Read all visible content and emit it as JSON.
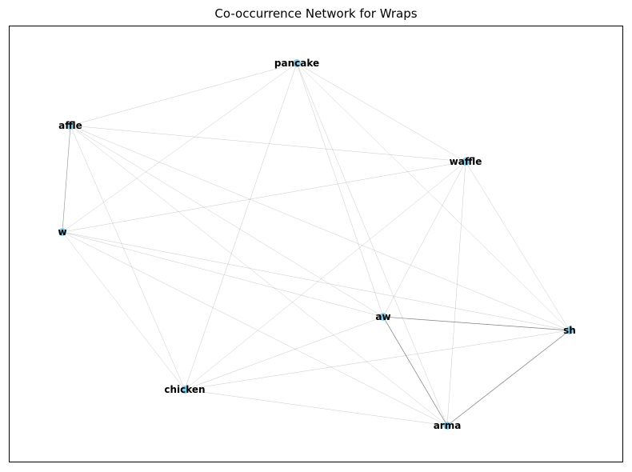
{
  "title": "Co-occurrence Network for Wraps",
  "colors": {
    "node": "#87ceeb",
    "edge": "#808080",
    "label": "#000000",
    "frame": "#000000"
  },
  "nodes": [
    {
      "id": "pancake",
      "label": "pancake"
    },
    {
      "id": "affle",
      "label": "affle"
    },
    {
      "id": "waffle",
      "label": "waffle"
    },
    {
      "id": "w",
      "label": "w"
    },
    {
      "id": "aw",
      "label": "aw"
    },
    {
      "id": "sh",
      "label": "sh"
    },
    {
      "id": "chicken",
      "label": "chicken"
    },
    {
      "id": "arma",
      "label": "arma"
    }
  ],
  "edges": [
    {
      "source": "pancake",
      "target": "affle",
      "weight": 1
    },
    {
      "source": "pancake",
      "target": "w",
      "weight": 1
    },
    {
      "source": "pancake",
      "target": "waffle",
      "weight": 1
    },
    {
      "source": "pancake",
      "target": "chicken",
      "weight": 1
    },
    {
      "source": "pancake",
      "target": "aw",
      "weight": 1
    },
    {
      "source": "pancake",
      "target": "sh",
      "weight": 1
    },
    {
      "source": "pancake",
      "target": "arma",
      "weight": 1
    },
    {
      "source": "affle",
      "target": "w",
      "weight": 3
    },
    {
      "source": "affle",
      "target": "waffle",
      "weight": 1
    },
    {
      "source": "affle",
      "target": "aw",
      "weight": 1
    },
    {
      "source": "affle",
      "target": "sh",
      "weight": 1
    },
    {
      "source": "affle",
      "target": "chicken",
      "weight": 1
    },
    {
      "source": "affle",
      "target": "arma",
      "weight": 1
    },
    {
      "source": "w",
      "target": "waffle",
      "weight": 1
    },
    {
      "source": "w",
      "target": "aw",
      "weight": 1
    },
    {
      "source": "w",
      "target": "sh",
      "weight": 1
    },
    {
      "source": "w",
      "target": "chicken",
      "weight": 1
    },
    {
      "source": "w",
      "target": "arma",
      "weight": 1
    },
    {
      "source": "waffle",
      "target": "aw",
      "weight": 1
    },
    {
      "source": "waffle",
      "target": "sh",
      "weight": 1
    },
    {
      "source": "waffle",
      "target": "chicken",
      "weight": 1
    },
    {
      "source": "waffle",
      "target": "arma",
      "weight": 1
    },
    {
      "source": "aw",
      "target": "sh",
      "weight": 4
    },
    {
      "source": "aw",
      "target": "arma",
      "weight": 4
    },
    {
      "source": "aw",
      "target": "chicken",
      "weight": 1
    },
    {
      "source": "sh",
      "target": "arma",
      "weight": 4
    },
    {
      "source": "sh",
      "target": "chicken",
      "weight": 1
    },
    {
      "source": "chicken",
      "target": "arma",
      "weight": 1
    }
  ]
}
